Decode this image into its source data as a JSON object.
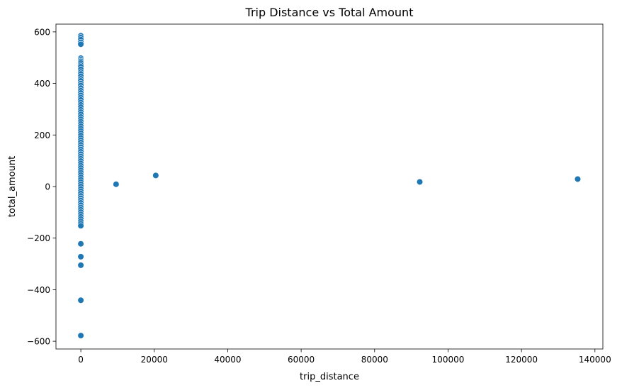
{
  "chart_data": {
    "type": "scatter",
    "title": "Trip Distance vs Total Amount",
    "xlabel": "trip_distance",
    "ylabel": "total_amount",
    "xlim": [
      -6770,
      142160
    ],
    "ylim": [
      -630,
      630
    ],
    "xticks": [
      0,
      20000,
      40000,
      60000,
      80000,
      100000,
      120000,
      140000
    ],
    "xtick_labels": [
      "0",
      "20000",
      "40000",
      "60000",
      "80000",
      "100000",
      "120000",
      "140000"
    ],
    "yticks": [
      -600,
      -400,
      -200,
      0,
      200,
      400,
      600
    ],
    "ytick_labels": [
      "−600",
      "−400",
      "−200",
      "0",
      "200",
      "400",
      "600"
    ],
    "grid": false,
    "legend": "none",
    "point_color": "#1f77b4",
    "points": [
      {
        "x": 0,
        "y": 585
      },
      {
        "x": 0,
        "y": 578
      },
      {
        "x": 0,
        "y": 570
      },
      {
        "x": 0,
        "y": 560
      },
      {
        "x": 0,
        "y": 552
      },
      {
        "x": 0,
        "y": 498
      },
      {
        "x": 0,
        "y": 492
      },
      {
        "x": 0,
        "y": 486
      },
      {
        "x": 0,
        "y": 480
      },
      {
        "x": 0,
        "y": 472
      },
      {
        "x": 0,
        "y": 465
      },
      {
        "x": 0,
        "y": 455
      },
      {
        "x": 0,
        "y": 445
      },
      {
        "x": 0,
        "y": 437
      },
      {
        "x": 0,
        "y": 428
      },
      {
        "x": 0,
        "y": 418
      },
      {
        "x": 0,
        "y": 410
      },
      {
        "x": 0,
        "y": 400
      },
      {
        "x": 0,
        "y": 392
      },
      {
        "x": 0,
        "y": 382
      },
      {
        "x": 0,
        "y": 372
      },
      {
        "x": 0,
        "y": 363
      },
      {
        "x": 0,
        "y": 354
      },
      {
        "x": 0,
        "y": 345
      },
      {
        "x": 0,
        "y": 336
      },
      {
        "x": 0,
        "y": 326
      },
      {
        "x": 0,
        "y": 317
      },
      {
        "x": 0,
        "y": 308
      },
      {
        "x": 0,
        "y": 298
      },
      {
        "x": 0,
        "y": 289
      },
      {
        "x": 0,
        "y": 280
      },
      {
        "x": 0,
        "y": 270
      },
      {
        "x": 0,
        "y": 261
      },
      {
        "x": 0,
        "y": 252
      },
      {
        "x": 0,
        "y": 243
      },
      {
        "x": 0,
        "y": 234
      },
      {
        "x": 0,
        "y": 225
      },
      {
        "x": 0,
        "y": 216
      },
      {
        "x": 0,
        "y": 207
      },
      {
        "x": 0,
        "y": 198
      },
      {
        "x": 0,
        "y": 189
      },
      {
        "x": 0,
        "y": 180
      },
      {
        "x": 0,
        "y": 171
      },
      {
        "x": 0,
        "y": 162
      },
      {
        "x": 0,
        "y": 153
      },
      {
        "x": 0,
        "y": 144
      },
      {
        "x": 0,
        "y": 135
      },
      {
        "x": 0,
        "y": 126
      },
      {
        "x": 0,
        "y": 117
      },
      {
        "x": 0,
        "y": 108
      },
      {
        "x": 0,
        "y": 99
      },
      {
        "x": 0,
        "y": 90
      },
      {
        "x": 0,
        "y": 81
      },
      {
        "x": 0,
        "y": 72
      },
      {
        "x": 0,
        "y": 63
      },
      {
        "x": 0,
        "y": 54
      },
      {
        "x": 0,
        "y": 45
      },
      {
        "x": 0,
        "y": 36
      },
      {
        "x": 0,
        "y": 27
      },
      {
        "x": 0,
        "y": 18
      },
      {
        "x": 0,
        "y": 9
      },
      {
        "x": 0,
        "y": 0
      },
      {
        "x": 0,
        "y": -9
      },
      {
        "x": 0,
        "y": -18
      },
      {
        "x": 0,
        "y": -27
      },
      {
        "x": 0,
        "y": -36
      },
      {
        "x": 0,
        "y": -45
      },
      {
        "x": 0,
        "y": -54
      },
      {
        "x": 0,
        "y": -63
      },
      {
        "x": 0,
        "y": -72
      },
      {
        "x": 0,
        "y": -81
      },
      {
        "x": 0,
        "y": -90
      },
      {
        "x": 0,
        "y": -99
      },
      {
        "x": 0,
        "y": -108
      },
      {
        "x": 0,
        "y": -117
      },
      {
        "x": 0,
        "y": -126
      },
      {
        "x": 0,
        "y": -135
      },
      {
        "x": 0,
        "y": -144
      },
      {
        "x": 0,
        "y": -152
      },
      {
        "x": 0,
        "y": -222
      },
      {
        "x": 0,
        "y": -272
      },
      {
        "x": 0,
        "y": -305
      },
      {
        "x": 0,
        "y": -441
      },
      {
        "x": 0,
        "y": -578
      },
      {
        "x": 9600,
        "y": 9
      },
      {
        "x": 20400,
        "y": 43
      },
      {
        "x": 92300,
        "y": 18
      },
      {
        "x": 135300,
        "y": 29
      }
    ]
  }
}
